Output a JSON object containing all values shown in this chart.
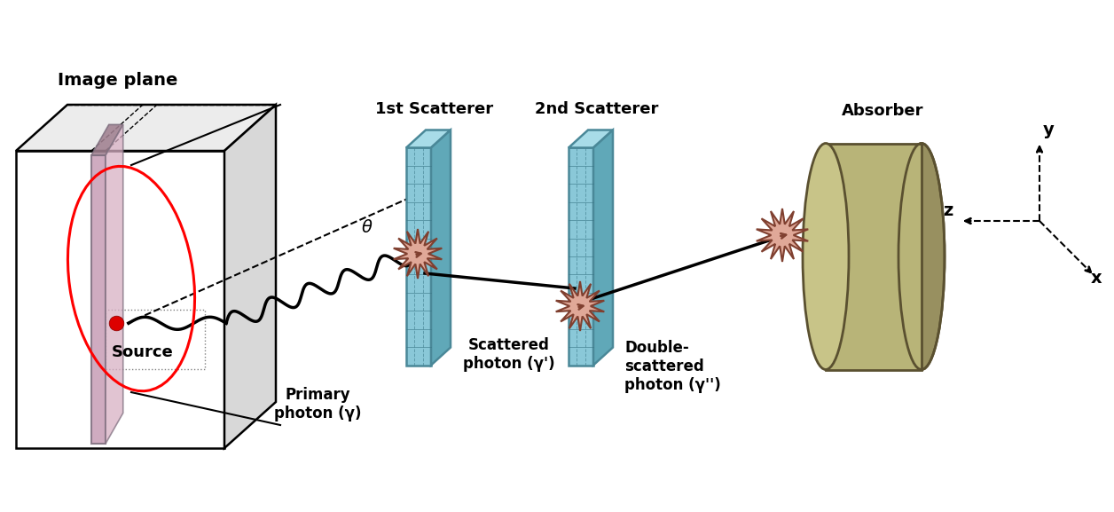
{
  "bg_color": "#ffffff",
  "box_color": "#000000",
  "plane_color": "#c9a0b8",
  "plane_edge": "#807080",
  "plane_side": "#a08090",
  "scatterer_front": "#8ac8d8",
  "scatterer_top": "#a8dce8",
  "scatterer_right": "#60a8b8",
  "scatterer_edge": "#4a8898",
  "scatterer_grid": "#3a7888",
  "absorber_body": "#b8b478",
  "absorber_front": "#c8c488",
  "absorber_edge": "#5a5030",
  "absorber_dark": "#989060",
  "source_color": "#dd0000",
  "burst_fill": "#e0a898",
  "burst_edge": "#804030",
  "cone_line": "#000000",
  "dashed_line": "#555555",
  "labels": {
    "image_plane": "Image plane",
    "source": "Source",
    "first_scatterer": "1st Scatterer",
    "second_scatterer": "2nd Scatterer",
    "absorber": "Absorber",
    "primary_photon": "Primary\nphoton (γ)",
    "scattered_photon": "Scattered\nphoton (γ')",
    "double_scattered": "Double-\nscattered\nphoton (γ'')",
    "theta": "θ",
    "y_axis": "y",
    "z_axis": "z",
    "x_axis": "x"
  },
  "figsize": [
    12.56,
    5.77
  ],
  "dpi": 100
}
